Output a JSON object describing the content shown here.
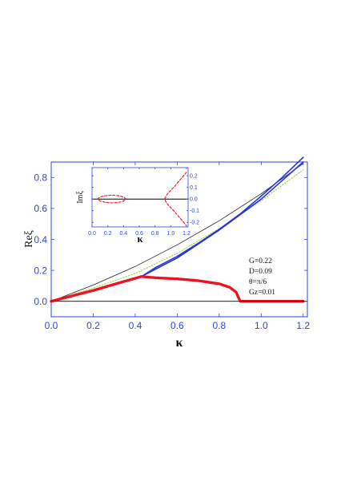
{
  "chart_data": [
    {
      "type": "line",
      "panel": "main",
      "xlabel": "κ",
      "ylabel": "Reξ",
      "xlim": [
        0,
        1.22
      ],
      "ylim": [
        -0.1,
        0.9
      ],
      "xticks": [
        "0.0",
        "0.2",
        "0.4",
        "0.6",
        "0.8",
        "1.0",
        "1.2"
      ],
      "yticks": [
        "0.0",
        "0.2",
        "0.4",
        "0.6",
        "0.8"
      ],
      "grid": false,
      "annotations": [
        "G=0.22",
        "D=0.09",
        "θ=π/6",
        "Gz=0.01"
      ],
      "series": [
        {
          "style": "thin-black",
          "color": "#222222",
          "x": [
            0,
            0.2,
            0.4,
            0.6,
            0.8,
            1.0,
            1.2
          ],
          "y": [
            0,
            0.105,
            0.225,
            0.365,
            0.52,
            0.695,
            0.89
          ]
        },
        {
          "style": "dotted-green",
          "color": "#9acd32",
          "x": [
            0,
            0.2,
            0.4,
            0.6,
            0.8,
            1.0,
            1.2
          ],
          "y": [
            0,
            0.085,
            0.18,
            0.31,
            0.47,
            0.65,
            0.85
          ]
        },
        {
          "style": "solid-blue",
          "color": "#2233dd",
          "x": [
            0,
            0.1,
            0.2,
            0.3,
            0.43,
            0.5,
            0.6,
            0.7,
            0.8,
            0.9,
            1.0,
            1.1,
            1.2
          ],
          "y": [
            0,
            0.035,
            0.07,
            0.11,
            0.16,
            0.21,
            0.28,
            0.37,
            0.46,
            0.56,
            0.66,
            0.78,
            0.9
          ]
        },
        {
          "style": "solid-blue",
          "color": "#2233dd",
          "x": [
            0.43,
            0.5,
            0.6,
            0.7,
            0.8,
            0.9,
            1.0,
            1.1,
            1.2
          ],
          "y": [
            0.16,
            0.22,
            0.29,
            0.375,
            0.465,
            0.565,
            0.68,
            0.8,
            0.93
          ]
        },
        {
          "style": "thick-dotted-red",
          "color": "#ee1122",
          "x": [
            0,
            0.1,
            0.2,
            0.3,
            0.43,
            0.5,
            0.6,
            0.7,
            0.8,
            0.85,
            0.88,
            0.9,
            1.0,
            1.1,
            1.2
          ],
          "y": [
            0,
            0.035,
            0.07,
            0.11,
            0.16,
            0.152,
            0.145,
            0.133,
            0.113,
            0.09,
            0.06,
            0,
            0,
            0,
            0
          ]
        },
        {
          "style": "zero-line",
          "color": "#000000",
          "x": [
            0,
            1.22
          ],
          "y": [
            0,
            0
          ]
        }
      ]
    },
    {
      "type": "line",
      "panel": "inset",
      "xlabel": "κ",
      "ylabel": "Imξ",
      "xlim": [
        0,
        1.22
      ],
      "ylim": [
        -0.24,
        0.27
      ],
      "xticks": [
        "0.0",
        "0.2",
        "0.4",
        "0.6",
        "0.8",
        "1.0",
        "1.2"
      ],
      "yticks": [
        "-0.2",
        "-0.1",
        "0.0",
        "0.1",
        "0.2"
      ],
      "series": [
        {
          "style": "solid-black",
          "color": "#000000",
          "x": [
            0,
            1.22
          ],
          "y": [
            0,
            0
          ]
        },
        {
          "style": "dashed-red",
          "color": "#ee1122",
          "x": [
            0.07,
            0.1,
            0.15,
            0.2,
            0.26,
            0.32,
            0.37,
            0.41,
            0.43,
            0.41,
            0.37,
            0.32,
            0.26,
            0.2,
            0.15,
            0.1,
            0.07
          ],
          "y": [
            0,
            0.017,
            0.026,
            0.031,
            0.033,
            0.03,
            0.024,
            0.013,
            0,
            -0.013,
            -0.024,
            -0.03,
            -0.033,
            -0.031,
            -0.026,
            -0.017,
            0
          ]
        },
        {
          "style": "dashed-red",
          "color": "#ee1122",
          "x": [
            1.2,
            1.15,
            1.1,
            1.05,
            1.0,
            0.96,
            0.94,
            0.92,
            0.94,
            0.96,
            1.0,
            1.05,
            1.1,
            1.15,
            1.2
          ],
          "y": [
            0.23,
            0.19,
            0.15,
            0.11,
            0.075,
            0.045,
            0.025,
            0,
            -0.025,
            -0.045,
            -0.075,
            -0.11,
            -0.15,
            -0.19,
            -0.23
          ]
        }
      ]
    }
  ]
}
